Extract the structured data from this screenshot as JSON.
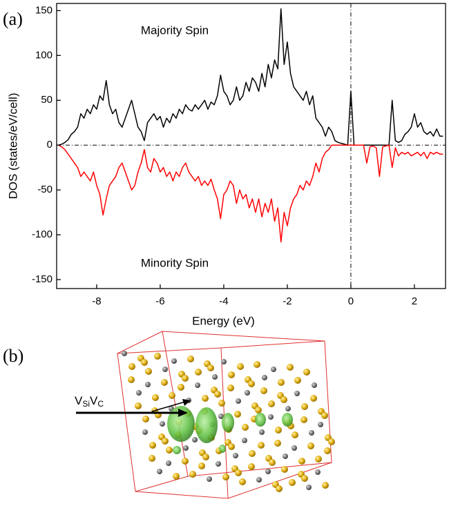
{
  "chart_data": {
    "type": "line",
    "panel_label": "(a)",
    "xlabel": "Energy (eV)",
    "ylabel": "DOS (states/eV/cell)",
    "annotations": [
      "Majority Spin",
      "Minority Spin"
    ],
    "xlim": [
      -9.26,
      2.98
    ],
    "xticks": [
      -8,
      -6,
      -4,
      -2,
      0,
      2
    ],
    "ylim": [
      -160,
      158
    ],
    "yticks": [
      -150,
      -100,
      -50,
      0,
      50,
      100,
      150
    ],
    "x": [
      -9.2,
      -9.1,
      -9.0,
      -8.9,
      -8.8,
      -8.7,
      -8.6,
      -8.5,
      -8.4,
      -8.3,
      -8.2,
      -8.1,
      -8.0,
      -7.9,
      -7.8,
      -7.7,
      -7.6,
      -7.5,
      -7.4,
      -7.3,
      -7.2,
      -7.1,
      -7.0,
      -6.9,
      -6.8,
      -6.7,
      -6.6,
      -6.5,
      -6.4,
      -6.3,
      -6.2,
      -6.1,
      -6.0,
      -5.9,
      -5.8,
      -5.7,
      -5.6,
      -5.5,
      -5.4,
      -5.3,
      -5.2,
      -5.1,
      -5.0,
      -4.9,
      -4.8,
      -4.7,
      -4.6,
      -4.5,
      -4.4,
      -4.3,
      -4.2,
      -4.1,
      -4.0,
      -3.9,
      -3.8,
      -3.7,
      -3.6,
      -3.5,
      -3.4,
      -3.3,
      -3.2,
      -3.1,
      -3.0,
      -2.9,
      -2.8,
      -2.7,
      -2.6,
      -2.5,
      -2.4,
      -2.3,
      -2.2,
      -2.1,
      -2.0,
      -1.9,
      -1.8,
      -1.7,
      -1.6,
      -1.5,
      -1.4,
      -1.3,
      -1.2,
      -1.1,
      -1.0,
      -0.9,
      -0.8,
      -0.7,
      -0.6,
      -0.5,
      -0.4,
      -0.3,
      -0.2,
      -0.1,
      0.0,
      0.1,
      0.2,
      0.3,
      0.4,
      0.5,
      0.6,
      0.7,
      0.8,
      0.9,
      1.0,
      1.1,
      1.2,
      1.3,
      1.4,
      1.5,
      1.6,
      1.7,
      1.8,
      1.9,
      2.0,
      2.1,
      2.2,
      2.3,
      2.4,
      2.5,
      2.6,
      2.7,
      2.8,
      2.9
    ],
    "series": [
      {
        "color": "#000000",
        "values": [
          0,
          1,
          3,
          6,
          12,
          15,
          20,
          35,
          30,
          40,
          35,
          45,
          40,
          55,
          50,
          72,
          45,
          35,
          40,
          25,
          20,
          30,
          40,
          50,
          35,
          20,
          15,
          5,
          25,
          30,
          35,
          28,
          32,
          20,
          30,
          25,
          35,
          30,
          40,
          35,
          45,
          40,
          38,
          45,
          40,
          45,
          50,
          40,
          48,
          45,
          55,
          78,
          60,
          55,
          45,
          50,
          65,
          50,
          55,
          70,
          60,
          75,
          70,
          60,
          80,
          65,
          90,
          75,
          95,
          85,
          152,
          90,
          115,
          80,
          65,
          60,
          55,
          50,
          60,
          45,
          55,
          30,
          25,
          20,
          10,
          20,
          15,
          5,
          3,
          2,
          1,
          0,
          60,
          0,
          0,
          0,
          0,
          0,
          0,
          0,
          0,
          0,
          0,
          0,
          0,
          50,
          5,
          3,
          5,
          12,
          15,
          20,
          35,
          20,
          25,
          15,
          12,
          15,
          10,
          18,
          10,
          10
        ]
      },
      {
        "color": "#ff0000",
        "values": [
          0,
          -2,
          -5,
          -10,
          -15,
          -20,
          -25,
          -35,
          -30,
          -35,
          -40,
          -30,
          -45,
          -55,
          -78,
          -60,
          -45,
          -40,
          -35,
          -25,
          -20,
          -30,
          -40,
          -50,
          -45,
          -30,
          -20,
          -5,
          -25,
          -30,
          -15,
          -20,
          -30,
          -25,
          -35,
          -30,
          -40,
          -30,
          -35,
          -25,
          -20,
          -30,
          -35,
          -40,
          -35,
          -45,
          -40,
          -45,
          -38,
          -50,
          -60,
          -82,
          -55,
          -50,
          -40,
          -45,
          -65,
          -50,
          -60,
          -55,
          -70,
          -60,
          -75,
          -60,
          -80,
          -65,
          -75,
          -60,
          -85,
          -70,
          -108,
          -75,
          -90,
          -70,
          -60,
          -55,
          -45,
          -50,
          -40,
          -45,
          -35,
          -20,
          -30,
          -15,
          -8,
          -5,
          0,
          0,
          0,
          0,
          0,
          0,
          0,
          0,
          0,
          0,
          0,
          -20,
          -2,
          -1,
          -3,
          -35,
          -2,
          -1,
          0,
          -25,
          -3,
          -12,
          -8,
          -10,
          -8,
          -12,
          -10,
          -8,
          -12,
          -8,
          -15,
          -8,
          -10,
          -8,
          -10,
          -10
        ]
      }
    ]
  },
  "panel_b": {
    "label": "(b)",
    "defect_label": [
      "V",
      "Si",
      "V",
      "C"
    ]
  }
}
